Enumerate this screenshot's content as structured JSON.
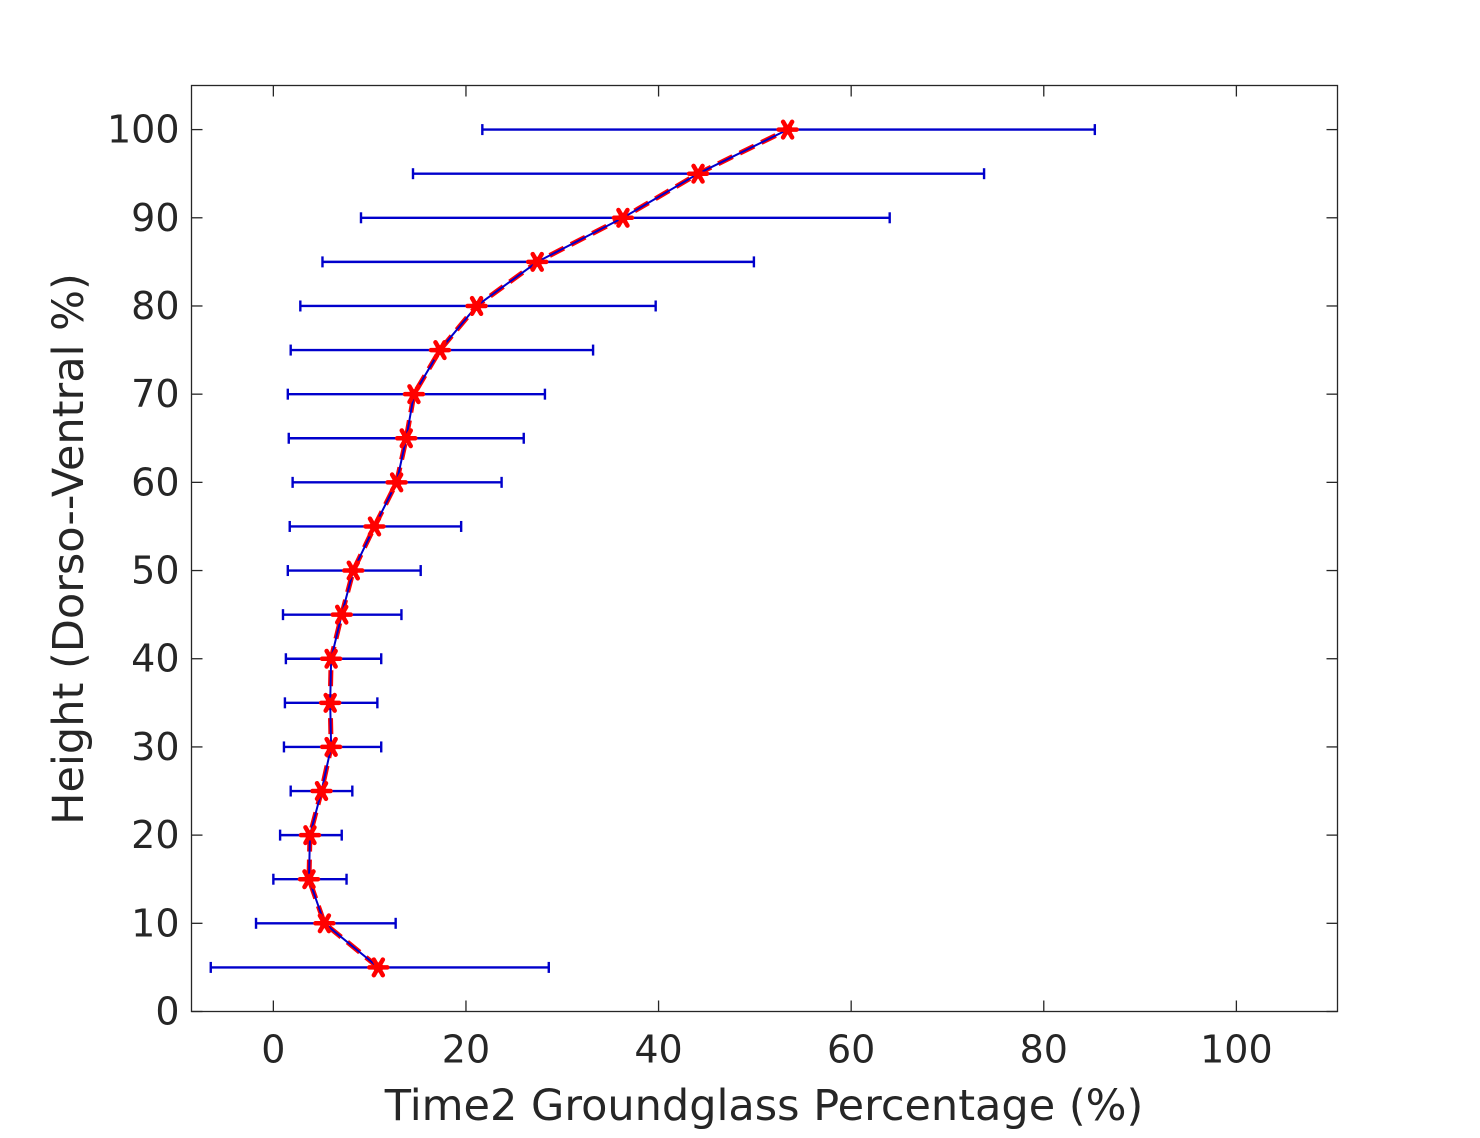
{
  "chart_data": {
    "type": "line",
    "title": "",
    "xlabel": "Time2 Groundglass Percentage (%)",
    "ylabel": "Height (Dorso--Ventral %)",
    "xlim": [
      -8.5,
      110.5
    ],
    "ylim": [
      0,
      105
    ],
    "xticks": [
      0,
      20,
      40,
      60,
      80,
      100
    ],
    "yticks": [
      0,
      10,
      20,
      30,
      40,
      50,
      60,
      70,
      80,
      90,
      100
    ],
    "grid": false,
    "legend": "none",
    "series": [
      {
        "y": [
          5,
          10,
          15,
          20,
          25,
          30,
          35,
          40,
          45,
          50,
          55,
          60,
          65,
          70,
          75,
          80,
          85,
          90,
          95,
          100
        ],
        "x": [
          10.9,
          5.3,
          3.7,
          3.8,
          5.0,
          6.0,
          5.9,
          6.0,
          7.1,
          8.3,
          10.5,
          12.8,
          13.8,
          14.6,
          17.3,
          21.1,
          27.4,
          36.3,
          44.1,
          53.4
        ],
        "err_low": [
          -6.5,
          -1.8,
          0.0,
          0.7,
          1.8,
          1.1,
          1.2,
          1.3,
          1.0,
          1.5,
          1.7,
          2.0,
          1.6,
          1.5,
          1.8,
          2.8,
          5.1,
          9.1,
          14.5,
          21.7
        ],
        "err_high": [
          28.6,
          12.7,
          7.6,
          7.1,
          8.2,
          11.2,
          10.8,
          11.2,
          13.3,
          15.3,
          19.5,
          23.7,
          26.0,
          28.2,
          33.2,
          39.7,
          49.9,
          64.0,
          73.8,
          85.3
        ]
      }
    ],
    "colors": {
      "error_bar": "#0000cc",
      "mean_line": "#0000cc",
      "overlay_line": "#ff0000",
      "marker": "#ff0000",
      "axis": "#262626"
    }
  }
}
